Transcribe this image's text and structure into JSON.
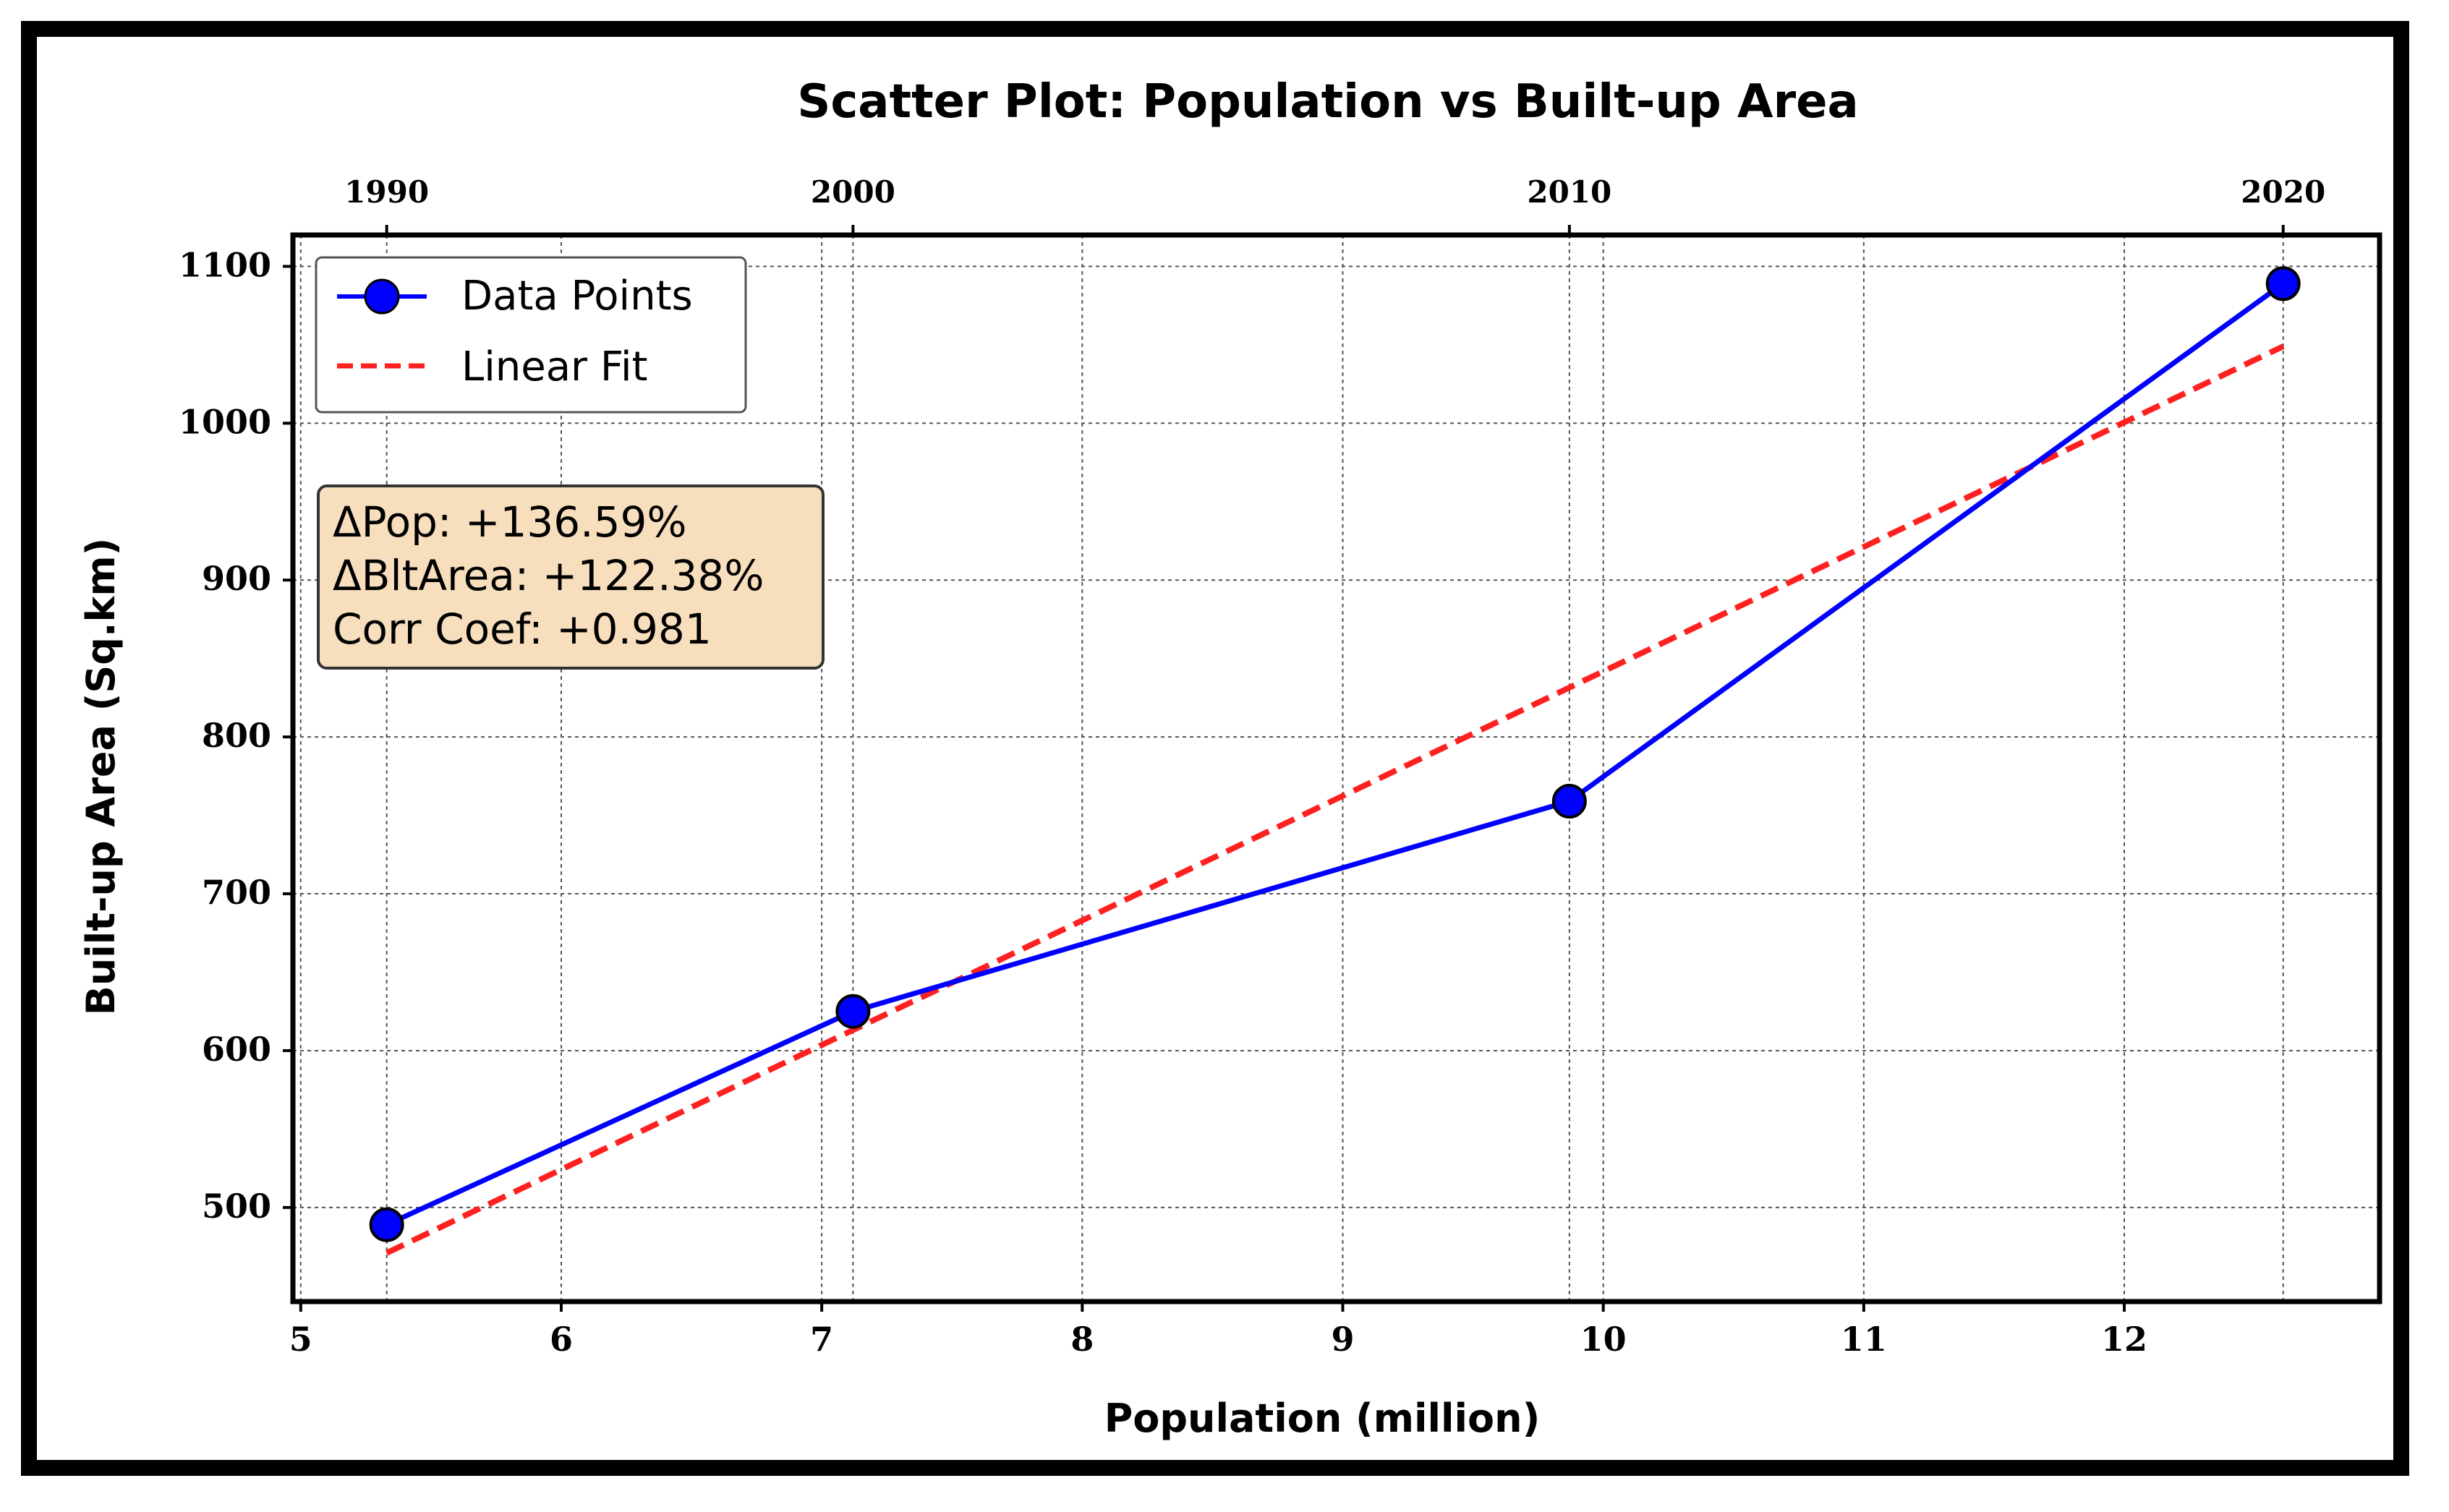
{
  "chart_data": {
    "type": "scatter",
    "title": "Scatter Plot: Population vs Built-up Area",
    "xlabel": "Population (million)",
    "ylabel": "Built-up Area (Sq.km)",
    "xlim": [
      4.97,
      12.98
    ],
    "ylim": [
      440,
      1120
    ],
    "xticks": [
      5,
      6,
      7,
      8,
      9,
      10,
      11,
      12
    ],
    "yticks": [
      500,
      600,
      700,
      800,
      900,
      1000,
      1100
    ],
    "top_axis": {
      "ticks": [
        {
          "x": 5.33,
          "label": "1990"
        },
        {
          "x": 7.12,
          "label": "2000"
        },
        {
          "x": 9.87,
          "label": "2010"
        },
        {
          "x": 12.61,
          "label": "2020"
        }
      ]
    },
    "grid": true,
    "legend_position": "top-left",
    "series": [
      {
        "name": "Data Points",
        "style": "line-marker",
        "color": "#0000ff",
        "marker_color": "#0000ff",
        "points": [
          {
            "x": 5.33,
            "y": 489
          },
          {
            "x": 7.12,
            "y": 625
          },
          {
            "x": 9.87,
            "y": 759
          },
          {
            "x": 12.61,
            "y": 1089
          }
        ]
      },
      {
        "name": "Linear Fit",
        "style": "dashed",
        "color": "#ff2020",
        "points": [
          {
            "x": 5.33,
            "y": 471
          },
          {
            "x": 12.61,
            "y": 1049
          }
        ]
      }
    ],
    "annotation": {
      "lines": [
        "ΔPop: +136.59%",
        "ΔBltArea: +122.38%",
        "Corr Coef: +0.981"
      ],
      "background": "#f7dfbd"
    }
  }
}
